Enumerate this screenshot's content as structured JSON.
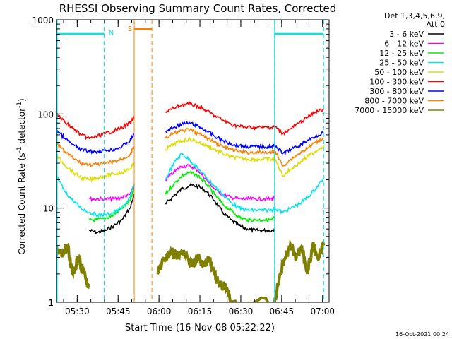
{
  "chart_data": {
    "type": "line",
    "title": "RHESSI Observing Summary Count Rates, Corrected",
    "xlabel": "Start Time (16-Nov-08 05:22:22)",
    "ylabel_main": "Corrected Count Rate (s",
    "ylabel_sup": "-1",
    "ylabel_mid": " detector",
    "ylabel_end": ")",
    "footer_date": "16-Oct-2021 00:24",
    "x_unit": "minutes after 05:22:22",
    "xlim": [
      0,
      100
    ],
    "ylim": [
      1,
      1000
    ],
    "y_scale": "log",
    "x_ticks": [
      {
        "v": 7.6,
        "label": "05:30"
      },
      {
        "v": 22.6,
        "label": "05:45"
      },
      {
        "v": 37.6,
        "label": "06:00"
      },
      {
        "v": 52.6,
        "label": "06:15"
      },
      {
        "v": 67.6,
        "label": "06:30"
      },
      {
        "v": 82.6,
        "label": "06:45"
      },
      {
        "v": 97.6,
        "label": "07:00"
      }
    ],
    "y_ticks": [
      {
        "v": 1,
        "label": "1"
      },
      {
        "v": 10,
        "label": "10"
      },
      {
        "v": 100,
        "label": "100"
      },
      {
        "v": 1000,
        "label": "1000"
      }
    ],
    "legend": {
      "header1": "Det 1,3,4,5,6,9,",
      "header2": "Att 0",
      "placement": "right"
    },
    "markers": {
      "night_label": "N",
      "saa_label": "S",
      "night_color": "#00e5ee",
      "saa_color": "#ff8000",
      "night_spans": [
        [
          0,
          17.5
        ],
        [
          80,
          98
        ]
      ],
      "saa_spans": [
        [
          28.5,
          35
        ]
      ],
      "dashed_x": [
        17.5,
        28.5,
        35,
        80,
        98
      ]
    },
    "series": [
      {
        "name": "3 - 6 keV",
        "color": "#000000",
        "x": [
          0,
          3,
          6,
          9,
          12,
          15,
          18,
          21,
          24,
          27,
          28.5,
          37,
          40,
          43,
          46,
          49,
          52,
          55,
          58,
          61,
          64,
          67,
          70,
          73,
          76,
          79,
          80
        ],
        "y": [
          null,
          null,
          null,
          null,
          5.8,
          5.5,
          5.8,
          6.5,
          7.5,
          10,
          14,
          null,
          11,
          13.5,
          16,
          17.5,
          17,
          15,
          12,
          9,
          7.5,
          6.5,
          6,
          5.8,
          5.8,
          5.8,
          6
        ]
      },
      {
        "name": "6 - 12 keV",
        "color": "#ff00ff",
        "x": [
          0,
          3,
          6,
          9,
          12,
          15,
          18,
          21,
          24,
          27,
          28.5,
          37,
          40,
          43,
          46,
          49,
          52,
          55,
          58,
          61,
          64,
          67,
          70,
          73,
          76,
          79,
          80
        ],
        "y": [
          null,
          null,
          null,
          null,
          12.5,
          12.5,
          12.5,
          12.5,
          13,
          14,
          17,
          null,
          20,
          24,
          28,
          28,
          25,
          20,
          16,
          14,
          13,
          12.5,
          12.5,
          12.5,
          12.5,
          12.5,
          13
        ]
      },
      {
        "name": "12 - 25 keV",
        "color": "#00ee00",
        "x": [
          0,
          3,
          6,
          9,
          12,
          15,
          18,
          21,
          24,
          27,
          28.5,
          37,
          40,
          43,
          46,
          49,
          52,
          55,
          58,
          61,
          64,
          67,
          70,
          73,
          76,
          79,
          80
        ],
        "y": [
          null,
          null,
          null,
          null,
          7.5,
          7.5,
          7.8,
          8.5,
          10,
          12,
          16,
          null,
          14,
          18,
          22,
          24,
          22,
          18,
          14,
          11,
          9.5,
          8,
          7.5,
          7.5,
          7.5,
          7.5,
          8
        ]
      },
      {
        "name": "25 - 50 keV",
        "color": "#00e5ee",
        "x": [
          0,
          3,
          6,
          9,
          12,
          15,
          18,
          21,
          24,
          27,
          28.5,
          37,
          40,
          43,
          46,
          49,
          52,
          55,
          58,
          61,
          64,
          67,
          70,
          73,
          76,
          79,
          80,
          83,
          86,
          89,
          92,
          95,
          98
        ],
        "y": [
          22,
          15,
          12,
          10,
          9,
          8.5,
          8.5,
          9,
          10,
          13,
          18,
          null,
          20,
          30,
          38,
          32,
          26,
          21,
          17,
          14,
          11.5,
          10,
          9.5,
          9.5,
          9.5,
          9.5,
          10,
          9,
          10,
          11,
          13,
          16,
          21
        ]
      },
      {
        "name": "50 - 100 keV",
        "color": "#dddd00",
        "x": [
          0,
          3,
          6,
          9,
          12,
          15,
          18,
          21,
          24,
          27,
          28.5,
          37,
          40,
          43,
          46,
          49,
          52,
          55,
          58,
          61,
          64,
          67,
          70,
          73,
          76,
          79,
          80,
          83,
          86,
          89,
          92,
          95,
          98
        ],
        "y": [
          36,
          29,
          24,
          21,
          20,
          21,
          22,
          23,
          24,
          26,
          30,
          null,
          42,
          48,
          52,
          54,
          50,
          46,
          42,
          38,
          35,
          34,
          33,
          33,
          33,
          33,
          34,
          22,
          26,
          30,
          35,
          40,
          46
        ]
      },
      {
        "name": "100 - 300 keV",
        "color": "#ff0000",
        "x": [
          0,
          3,
          6,
          9,
          12,
          15,
          18,
          21,
          24,
          27,
          28.5,
          37,
          40,
          43,
          46,
          49,
          52,
          55,
          58,
          61,
          64,
          67,
          70,
          73,
          76,
          79,
          80,
          83,
          86,
          89,
          92,
          95,
          98
        ],
        "y": [
          100,
          82,
          70,
          60,
          55,
          58,
          62,
          66,
          72,
          80,
          92,
          null,
          105,
          115,
          125,
          128,
          120,
          108,
          96,
          86,
          78,
          74,
          72,
          72,
          72,
          72,
          74,
          62,
          70,
          80,
          92,
          105,
          112
        ]
      },
      {
        "name": "300 - 800 keV",
        "color": "#0000ff",
        "x": [
          0,
          3,
          6,
          9,
          12,
          15,
          18,
          21,
          24,
          27,
          28.5,
          37,
          40,
          43,
          46,
          49,
          52,
          55,
          58,
          61,
          64,
          67,
          70,
          73,
          76,
          79,
          80,
          83,
          86,
          89,
          92,
          95,
          98
        ],
        "y": [
          68,
          55,
          47,
          42,
          40,
          40,
          41,
          42,
          45,
          52,
          62,
          null,
          65,
          72,
          78,
          80,
          74,
          66,
          58,
          52,
          48,
          46,
          45,
          45,
          45,
          45,
          47,
          38,
          42,
          46,
          52,
          58,
          64
        ]
      },
      {
        "name": "800 - 7000 keV",
        "color": "#ff8000",
        "x": [
          0,
          3,
          6,
          9,
          12,
          15,
          18,
          21,
          24,
          27,
          28.5,
          37,
          40,
          43,
          46,
          49,
          52,
          55,
          58,
          61,
          64,
          67,
          70,
          73,
          76,
          79,
          80,
          83,
          86,
          89,
          92,
          95,
          98
        ],
        "y": [
          48,
          40,
          34,
          30,
          29,
          29,
          30,
          31,
          33,
          37,
          45,
          null,
          55,
          62,
          66,
          68,
          62,
          56,
          50,
          45,
          42,
          40,
          39,
          39,
          39,
          39,
          41,
          28,
          33,
          38,
          43,
          50,
          56
        ]
      },
      {
        "name": "7000 - 15000 keV",
        "color": "#808000",
        "x": [
          0,
          2,
          4,
          6,
          8,
          10,
          12,
          15,
          18,
          21,
          24,
          27,
          28.5,
          37,
          40,
          42,
          44,
          46,
          48,
          50,
          52,
          54,
          56,
          58,
          60,
          62,
          64,
          80,
          82,
          84,
          86,
          88,
          90,
          92,
          94,
          96,
          98
        ],
        "y": [
          4,
          3,
          4,
          2,
          3,
          2,
          1.5,
          null,
          null,
          null,
          null,
          null,
          null,
          2,
          3,
          3.5,
          3,
          3.5,
          3,
          2.5,
          3,
          2.5,
          3,
          2,
          1.5,
          1.5,
          1,
          1,
          2,
          3,
          4,
          3,
          4,
          2,
          4,
          3,
          4
        ]
      }
    ]
  }
}
